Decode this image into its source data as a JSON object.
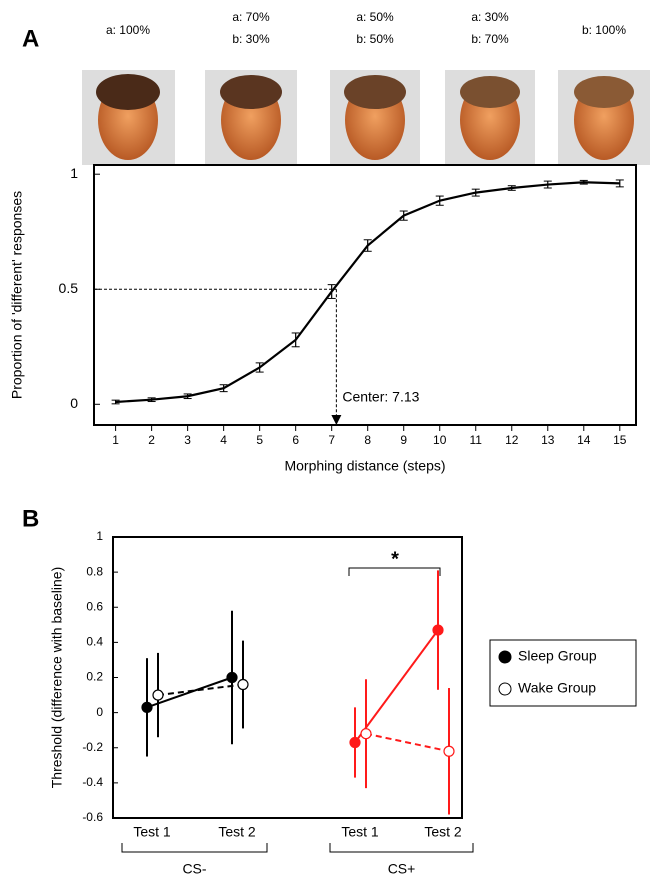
{
  "chart_data": [
    {
      "type": "line",
      "panel": "A",
      "image_labels": [
        [
          "a: 100%"
        ],
        [
          "a: 70%",
          "b: 30%"
        ],
        [
          "a: 50%",
          "b: 50%"
        ],
        [
          "a: 30%",
          "b: 70%"
        ],
        [
          "b: 100%"
        ]
      ],
      "x_label": "Morphing distance (steps)",
      "y_label": "Proportion of 'different' responses",
      "x": [
        1,
        2,
        3,
        4,
        5,
        6,
        7,
        8,
        9,
        10,
        11,
        12,
        13,
        14,
        15
      ],
      "values": [
        0.01,
        0.02,
        0.035,
        0.07,
        0.16,
        0.28,
        0.49,
        0.69,
        0.82,
        0.885,
        0.92,
        0.94,
        0.955,
        0.965,
        0.96
      ],
      "errors": [
        0.008,
        0.008,
        0.01,
        0.015,
        0.02,
        0.03,
        0.03,
        0.025,
        0.02,
        0.02,
        0.015,
        0.01,
        0.015,
        0.008,
        0.015
      ],
      "color": "#000000",
      "xlim": [
        0.4,
        15.45
      ],
      "ylim": [
        -0.09,
        1.04
      ],
      "xticks": [
        1,
        2,
        3,
        4,
        5,
        6,
        7,
        8,
        9,
        10,
        11,
        12,
        13,
        14,
        15
      ],
      "yticks": [
        0,
        0.5,
        1
      ],
      "center": {
        "x": 7.13,
        "y": 0.5,
        "label": "Center: 7.13"
      }
    },
    {
      "type": "dot-line",
      "panel": "B",
      "y_label": "Threshold (difference with baseline)",
      "groups": [
        {
          "label": "CS-",
          "categories": [
            "Test 1",
            "Test 2"
          ],
          "color": "#000000"
        },
        {
          "label": "CS+",
          "categories": [
            "Test 1",
            "Test 2"
          ],
          "color": "#ff1a1a"
        }
      ],
      "series": [
        {
          "name": "Sleep Group",
          "marker": "filled",
          "dashed": false,
          "values": [
            0.03,
            0.2,
            -0.17,
            0.47
          ],
          "errors": [
            0.28,
            0.38,
            0.2,
            0.34
          ]
        },
        {
          "name": "Wake Group",
          "marker": "open",
          "dashed": true,
          "values": [
            0.1,
            0.16,
            -0.12,
            -0.22
          ],
          "errors": [
            0.24,
            0.25,
            0.31,
            0.36
          ]
        }
      ],
      "ylim": [
        -0.6,
        1
      ],
      "yticks": [
        -0.6,
        -0.4,
        -0.2,
        0,
        0.2,
        0.4,
        0.6,
        0.8,
        1
      ],
      "annotation": "*"
    }
  ]
}
